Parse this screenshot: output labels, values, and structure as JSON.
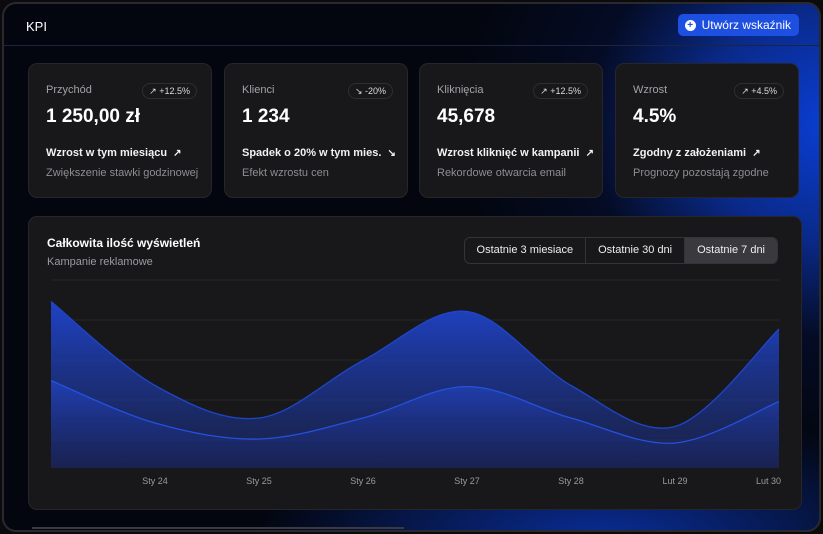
{
  "header": {
    "title": "KPI",
    "create_button": "Utwórz wskaźnik",
    "create_icon": "plus-circle-icon"
  },
  "cards": [
    {
      "label": "Przychód",
      "badge": "↗ +12.5%",
      "trend": "up",
      "value": "1 250,00 zł",
      "desc": "Wzrost w tym miesiącu",
      "desc_icon": "↗",
      "sub": "Zwiększenie stawki godzinowej"
    },
    {
      "label": "Klienci",
      "badge": "↘ -20%",
      "trend": "down",
      "value": "1 234",
      "desc": "Spadek o 20% w tym mies.",
      "desc_icon": "↘",
      "sub": "Efekt wzrostu cen"
    },
    {
      "label": "Kliknięcia",
      "badge": "↗ +12.5%",
      "trend": "up",
      "value": "45,678",
      "desc": "Wzrost kliknięć w kampanii",
      "desc_icon": "↗",
      "sub": "Rekordowe otwarcia email"
    },
    {
      "label": "Wzrost",
      "badge": "↗ +4.5%",
      "trend": "up",
      "value": "4.5%",
      "desc": "Zgodny z założeniami",
      "desc_icon": "↗",
      "sub": "Prognozy pozostają zgodne"
    }
  ],
  "chart": {
    "title": "Całkowita ilość wyświetleń",
    "subtitle": "Kampanie reklamowe",
    "ranges": [
      "Ostatnie 3 miesiace",
      "Ostatnie 30 dni",
      "Ostatnie 7 dni"
    ],
    "selected_range": "Ostatnie 7 dni"
  },
  "chart_data": {
    "type": "area",
    "categories": [
      "",
      "Sty 24",
      "Sty 25",
      "Sty 26",
      "Sty 27",
      "Sty 28",
      "Lut 29",
      "Lut 30"
    ],
    "series": [
      {
        "values": [
          333,
          165,
          100,
          215,
          313,
          165,
          83,
          278
        ],
        "color": "#1f45c8"
      },
      {
        "values": [
          175,
          90,
          58,
          100,
          163,
          100,
          50,
          133
        ],
        "color": "#2550e0"
      }
    ],
    "ylim": [
      0,
      400
    ],
    "grid": true,
    "y_tick_labels": false,
    "legend": "none"
  }
}
